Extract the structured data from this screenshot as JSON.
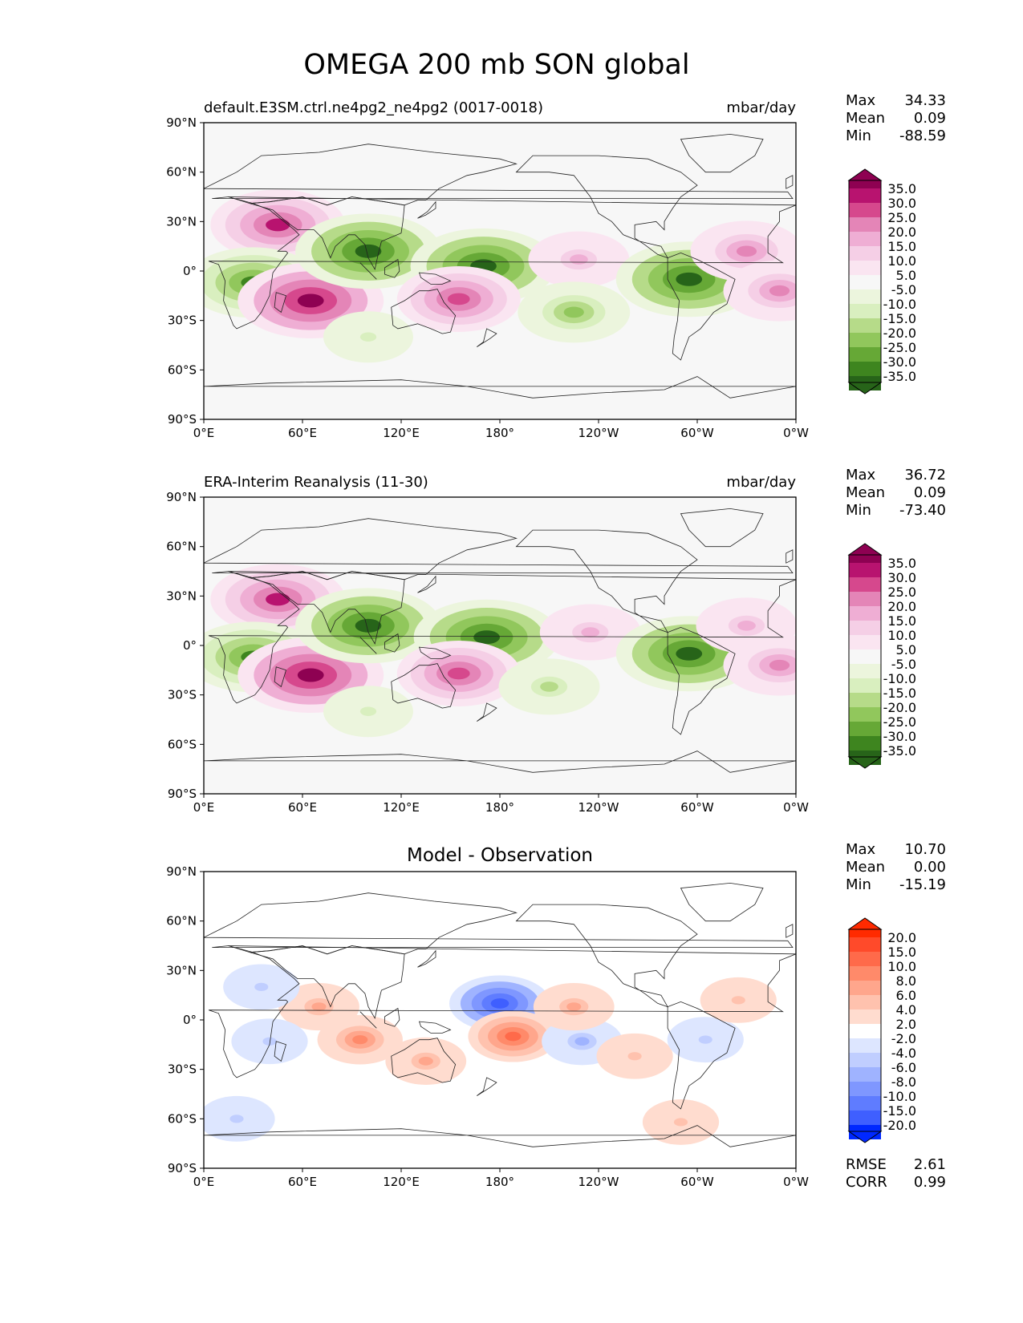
{
  "title": "OMEGA 200 mb SON global",
  "lat_ticks": [
    "90°N",
    "60°N",
    "30°N",
    "0°",
    "30°S",
    "60°S",
    "90°S"
  ],
  "lon_ticks": [
    "0°E",
    "60°E",
    "120°E",
    "180°",
    "120°W",
    "60°W",
    "0°W"
  ],
  "panels": [
    {
      "id": "model",
      "title_left": "default.E3SM.ctrl.ne4pg2_ne4pg2 (0017-0018)",
      "title_center": "",
      "units": "mbar/day",
      "stats": {
        "labels": [
          "Max",
          "Mean",
          "Min"
        ],
        "values": [
          "34.33",
          "0.09",
          "-88.59"
        ]
      },
      "colorbar": {
        "labels": [
          "35.0",
          "30.0",
          "25.0",
          "20.0",
          "15.0",
          "10.0",
          "5.0",
          "-5.0",
          "-10.0",
          "-15.0",
          "-20.0",
          "-25.0",
          "-30.0",
          "-35.0"
        ],
        "colors": [
          "#8e0152",
          "#b8136f",
          "#d6488d",
          "#e485b7",
          "#efaed4",
          "#f5cfe6",
          "#fae5f1",
          "#f7f7f7",
          "#ecf5dd",
          "#d9efbf",
          "#b6db89",
          "#91c75c",
          "#66a836",
          "#3e851f",
          "#276419"
        ]
      }
    },
    {
      "id": "obs",
      "title_left": "ERA-Interim Reanalysis (11-30)",
      "title_center": "",
      "units": "mbar/day",
      "stats": {
        "labels": [
          "Max",
          "Mean",
          "Min"
        ],
        "values": [
          "36.72",
          "0.09",
          "-73.40"
        ]
      },
      "colorbar": {
        "labels": [
          "35.0",
          "30.0",
          "25.0",
          "20.0",
          "15.0",
          "10.0",
          "5.0",
          "-5.0",
          "-10.0",
          "-15.0",
          "-20.0",
          "-25.0",
          "-30.0",
          "-35.0"
        ],
        "colors": [
          "#8e0152",
          "#b8136f",
          "#d6488d",
          "#e485b7",
          "#efaed4",
          "#f5cfe6",
          "#fae5f1",
          "#f7f7f7",
          "#ecf5dd",
          "#d9efbf",
          "#b6db89",
          "#91c75c",
          "#66a836",
          "#3e851f",
          "#276419"
        ]
      }
    },
    {
      "id": "diff",
      "title_left": "",
      "title_center": "Model - Observation",
      "units": "",
      "stats": {
        "labels": [
          "Max",
          "Mean",
          "Min"
        ],
        "values": [
          "10.70",
          "0.00",
          "-15.19"
        ]
      },
      "extra_stats": {
        "labels": [
          "RMSE",
          "CORR"
        ],
        "values": [
          "2.61",
          "0.99"
        ]
      },
      "colorbar": {
        "labels": [
          "20.0",
          "15.0",
          "10.0",
          "8.0",
          "6.0",
          "4.0",
          "2.0",
          "-2.0",
          "-4.0",
          "-6.0",
          "-8.0",
          "-10.0",
          "-15.0",
          "-20.0"
        ],
        "colors": [
          "#ff2a00",
          "#ff4a2a",
          "#ff6a4a",
          "#ff8a6a",
          "#ffa68c",
          "#ffc2ae",
          "#ffdccf",
          "#ffffff",
          "#dde6ff",
          "#c0ceff",
          "#9fb3ff",
          "#7f97ff",
          "#5f7cff",
          "#3f5fff",
          "#0028ff"
        ]
      }
    }
  ],
  "chart_data": [
    {
      "type": "heatmap",
      "title": "default.E3SM.ctrl.ne4pg2_ne4pg2 (0017-0018)",
      "units": "mbar/day",
      "xlabel": "",
      "ylabel": "",
      "xlim": [
        0,
        360
      ],
      "ylim": [
        -90,
        90
      ],
      "x": [
        0,
        60,
        120,
        180,
        240,
        300,
        360
      ],
      "y": [
        -90,
        -60,
        -30,
        0,
        30,
        60,
        90
      ],
      "features": [
        {
          "lon": 45,
          "lat": 28,
          "value": 30
        },
        {
          "lon": 30,
          "lat": -7,
          "value": -30
        },
        {
          "lon": 65,
          "lat": -18,
          "value": 35
        },
        {
          "lon": 100,
          "lat": 12,
          "value": -35
        },
        {
          "lon": 170,
          "lat": 3,
          "value": -35
        },
        {
          "lon": 155,
          "lat": -17,
          "value": 25
        },
        {
          "lon": 228,
          "lat": 7,
          "value": 15
        },
        {
          "lon": 225,
          "lat": -25,
          "value": -20
        },
        {
          "lon": 295,
          "lat": -5,
          "value": -35
        },
        {
          "lon": 330,
          "lat": 12,
          "value": 20
        },
        {
          "lon": 350,
          "lat": -12,
          "value": 20
        },
        {
          "lon": 100,
          "lat": -40,
          "value": -10
        }
      ]
    },
    {
      "type": "heatmap",
      "title": "ERA-Interim Reanalysis (11-30)",
      "units": "mbar/day",
      "xlabel": "",
      "ylabel": "",
      "xlim": [
        0,
        360
      ],
      "ylim": [
        -90,
        90
      ],
      "x": [
        0,
        60,
        120,
        180,
        240,
        300,
        360
      ],
      "y": [
        -90,
        -60,
        -30,
        0,
        30,
        60,
        90
      ],
      "features": [
        {
          "lon": 45,
          "lat": 28,
          "value": 30
        },
        {
          "lon": 30,
          "lat": -7,
          "value": -30
        },
        {
          "lon": 65,
          "lat": -18,
          "value": 35
        },
        {
          "lon": 100,
          "lat": 12,
          "value": -35
        },
        {
          "lon": 172,
          "lat": 5,
          "value": -35
        },
        {
          "lon": 155,
          "lat": -17,
          "value": 25
        },
        {
          "lon": 235,
          "lat": 8,
          "value": 15
        },
        {
          "lon": 210,
          "lat": -25,
          "value": -15
        },
        {
          "lon": 295,
          "lat": -5,
          "value": -35
        },
        {
          "lon": 330,
          "lat": 12,
          "value": 15
        },
        {
          "lon": 350,
          "lat": -12,
          "value": 20
        },
        {
          "lon": 100,
          "lat": -40,
          "value": -10
        }
      ]
    },
    {
      "type": "heatmap",
      "title": "Model - Observation",
      "units": "",
      "xlabel": "",
      "ylabel": "",
      "xlim": [
        0,
        360
      ],
      "ylim": [
        -90,
        90
      ],
      "x": [
        0,
        60,
        120,
        180,
        240,
        300,
        360
      ],
      "y": [
        -90,
        -60,
        -30,
        0,
        30,
        60,
        90
      ],
      "features": [
        {
          "lon": 180,
          "lat": 10,
          "value": -15
        },
        {
          "lon": 188,
          "lat": -10,
          "value": 10
        },
        {
          "lon": 95,
          "lat": -12,
          "value": 8
        },
        {
          "lon": 135,
          "lat": -25,
          "value": 6
        },
        {
          "lon": 70,
          "lat": 8,
          "value": 6
        },
        {
          "lon": 230,
          "lat": -13,
          "value": -6
        },
        {
          "lon": 225,
          "lat": 8,
          "value": 6
        },
        {
          "lon": 262,
          "lat": -22,
          "value": 4
        },
        {
          "lon": 35,
          "lat": 20,
          "value": -4
        },
        {
          "lon": 40,
          "lat": -13,
          "value": -4
        },
        {
          "lon": 20,
          "lat": -60,
          "value": -4
        },
        {
          "lon": 305,
          "lat": -12,
          "value": -4
        },
        {
          "lon": 325,
          "lat": 12,
          "value": 4
        },
        {
          "lon": 290,
          "lat": -62,
          "value": 4
        }
      ]
    }
  ]
}
